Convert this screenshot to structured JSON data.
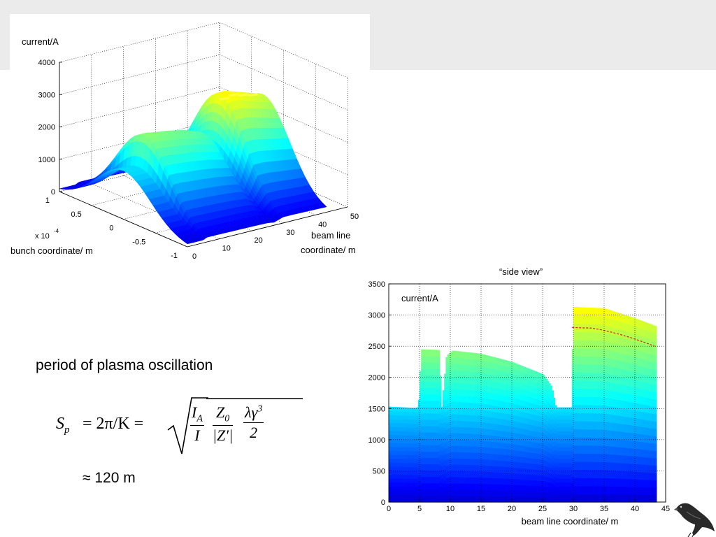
{
  "slide": {
    "period_label": "period of plasma oscillation",
    "result_label": "≈ 120 m",
    "formula": {
      "lhs": "S",
      "lhs_sub": "p",
      "eq1": "= 2π/K =",
      "f1_num": "I",
      "f1_num_sub": "A",
      "f1_den": "I",
      "f2_num": "Z",
      "f2_num_sub": "0",
      "f2_den": "|Z′|",
      "f3_num": "λγ",
      "f3_num_sup": "3",
      "f3_den": "2"
    }
  },
  "chart_data": [
    {
      "type": "surface",
      "title": "",
      "zlabel": "current/A",
      "xlabel": "beam line coordinate/ m",
      "ylabel": "bunch coordinate/ m",
      "y_exponent_label": "x 10",
      "y_exponent": "-4",
      "z_ticks": [
        "0",
        "1000",
        "2000",
        "3000",
        "4000"
      ],
      "x_ticks": [
        "0",
        "10",
        "20",
        "30",
        "40",
        "50"
      ],
      "y_ticks": [
        "1",
        "0.5",
        "0",
        "-0.5",
        "-1"
      ],
      "zlim": [
        0,
        4000
      ],
      "xlim": [
        0,
        50
      ],
      "ylim": [
        -1,
        1
      ],
      "grid": true,
      "colormap": "jet",
      "peak_profile": {
        "x": [
          0,
          5,
          6,
          9,
          10,
          15,
          20,
          25,
          26,
          27,
          30,
          33,
          37,
          40,
          43
        ],
        "z": [
          1500,
          1500,
          2430,
          2430,
          2400,
          2330,
          2230,
          2060,
          1850,
          1500,
          3130,
          3130,
          3000,
          2900,
          2800
        ]
      }
    },
    {
      "type": "area",
      "title": "“side view”",
      "ylabel": "current/A",
      "xlabel": "beam line coordinate/ m",
      "xlim": [
        0,
        45
      ],
      "ylim": [
        0,
        3500
      ],
      "x_ticks": [
        "0",
        "5",
        "10",
        "15",
        "20",
        "25",
        "30",
        "35",
        "40",
        "45"
      ],
      "y_ticks": [
        "0",
        "500",
        "1000",
        "1500",
        "2000",
        "2500",
        "3000",
        "3500"
      ],
      "grid": true,
      "colormap": "jet",
      "series": [
        {
          "x": [
            0,
            4.6,
            4.9,
            5.3,
            8.2,
            8.6,
            9.4,
            10.4,
            15,
            20,
            25.1,
            26.5,
            27.2,
            29.7,
            30,
            35,
            40,
            43.5
          ],
          "y": [
            1530,
            1510,
            1650,
            2450,
            2440,
            1500,
            2350,
            2430,
            2380,
            2250,
            2050,
            1850,
            1520,
            1520,
            3130,
            3110,
            2950,
            2820
          ]
        }
      ]
    }
  ],
  "colors": {
    "dark_blue": "#00008f",
    "blue": "#0050ff",
    "cyan": "#00ffff",
    "light_green": "#80ff80",
    "yellow": "#ffff00",
    "red": "#ff0000",
    "band_gray": "#ebebeb"
  }
}
